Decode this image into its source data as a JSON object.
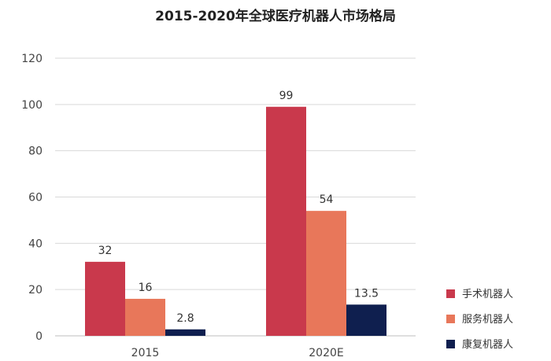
{
  "chart_data": {
    "type": "bar",
    "title": "2015-2020年全球医疗机器人市场格局",
    "categories": [
      "2015",
      "2020E"
    ],
    "series": [
      {
        "name": "手术机器人",
        "values": [
          32,
          99
        ],
        "labels": [
          "32",
          "99"
        ],
        "color": "#C9394C"
      },
      {
        "name": "服务机器人",
        "values": [
          16,
          54
        ],
        "labels": [
          "16",
          "54"
        ],
        "color": "#E8775A"
      },
      {
        "name": "康复机器人",
        "values": [
          2.8,
          13.5
        ],
        "labels": [
          "2.8",
          "13.5"
        ],
        "color": "#0F1F4F"
      }
    ],
    "ylim": [
      0,
      120
    ],
    "yticks": [
      "0",
      "20",
      "40",
      "60",
      "80",
      "100",
      "120"
    ],
    "grid": true,
    "legend_position": "bottom-right",
    "xlabel": "",
    "ylabel": ""
  }
}
